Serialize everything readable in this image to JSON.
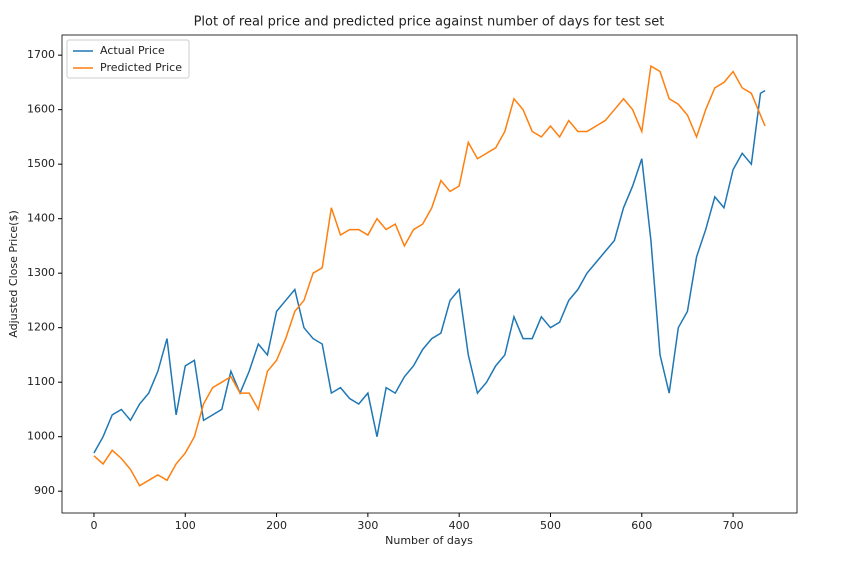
{
  "chart_data": {
    "type": "line",
    "title": "Plot of real price and predicted price against number of days for test set",
    "xlabel": "Number of days",
    "ylabel": "Adjusted Close Price($)",
    "x": [
      0,
      10,
      20,
      30,
      40,
      50,
      60,
      70,
      80,
      90,
      100,
      110,
      120,
      130,
      140,
      150,
      160,
      170,
      180,
      190,
      200,
      210,
      220,
      230,
      240,
      250,
      260,
      270,
      280,
      290,
      300,
      310,
      320,
      330,
      340,
      350,
      360,
      370,
      380,
      390,
      400,
      410,
      420,
      430,
      440,
      450,
      460,
      470,
      480,
      490,
      500,
      510,
      520,
      530,
      540,
      550,
      560,
      570,
      580,
      590,
      600,
      610,
      620,
      630,
      640,
      650,
      660,
      670,
      680,
      690,
      700,
      710,
      720,
      730,
      735
    ],
    "series": [
      {
        "name": "Actual Price",
        "color": "#1f77b4",
        "values": [
          970,
          1000,
          1040,
          1050,
          1030,
          1060,
          1080,
          1120,
          1180,
          1040,
          1130,
          1140,
          1030,
          1040,
          1050,
          1120,
          1080,
          1120,
          1170,
          1150,
          1230,
          1250,
          1270,
          1200,
          1180,
          1170,
          1080,
          1090,
          1070,
          1060,
          1080,
          1000,
          1090,
          1080,
          1110,
          1130,
          1160,
          1180,
          1190,
          1250,
          1270,
          1150,
          1080,
          1100,
          1130,
          1150,
          1220,
          1180,
          1180,
          1220,
          1200,
          1210,
          1250,
          1270,
          1300,
          1320,
          1340,
          1360,
          1420,
          1460,
          1510,
          1360,
          1150,
          1080,
          1200,
          1230,
          1330,
          1380,
          1440,
          1420,
          1490,
          1520,
          1500,
          1630,
          1635
        ]
      },
      {
        "name": "Predicted Price",
        "color": "#ff7f0e",
        "values": [
          965,
          950,
          975,
          960,
          940,
          910,
          920,
          930,
          920,
          950,
          970,
          1000,
          1060,
          1090,
          1100,
          1110,
          1080,
          1080,
          1050,
          1120,
          1140,
          1180,
          1230,
          1250,
          1300,
          1310,
          1420,
          1370,
          1380,
          1380,
          1370,
          1400,
          1380,
          1390,
          1350,
          1380,
          1390,
          1420,
          1470,
          1450,
          1460,
          1540,
          1510,
          1520,
          1530,
          1560,
          1620,
          1600,
          1560,
          1550,
          1570,
          1550,
          1580,
          1560,
          1560,
          1570,
          1580,
          1600,
          1620,
          1600,
          1560,
          1680,
          1670,
          1620,
          1610,
          1590,
          1550,
          1600,
          1640,
          1650,
          1670,
          1640,
          1630,
          1590,
          1570
        ]
      }
    ],
    "xlim": [
      -35,
      770
    ],
    "ylim": [
      860,
      1737
    ],
    "xticks": [
      0,
      100,
      200,
      300,
      400,
      500,
      600,
      700
    ],
    "yticks": [
      900,
      1000,
      1100,
      1200,
      1300,
      1400,
      1500,
      1600,
      1700
    ],
    "legend": "upper left"
  }
}
